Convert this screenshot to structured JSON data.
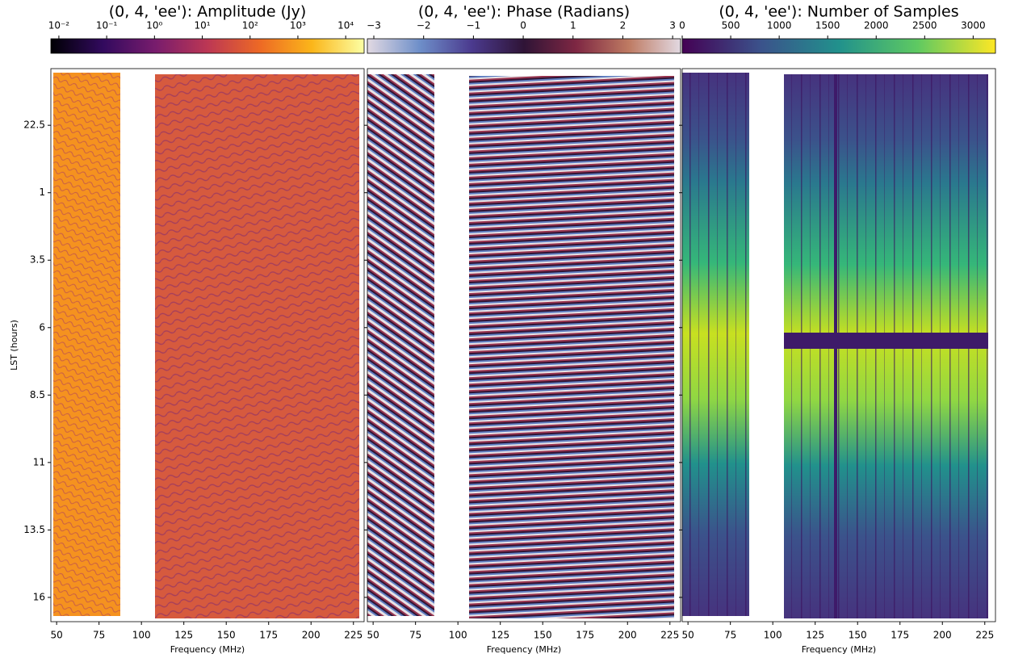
{
  "chart_data": [
    {
      "type": "heatmap",
      "title": "(0, 4, 'ee'): Amplitude (Jy)",
      "colorbar": {
        "scale": "log",
        "lim": [
          0.0068,
          24300
        ],
        "colors": [
          "#000004",
          "#320a5e",
          "#781c6d",
          "#bc3754",
          "#ed6925",
          "#fbb61a",
          "#fcffa4"
        ],
        "ticks": [
          {
            "value": 0.01,
            "label": "10⁻²"
          },
          {
            "value": 0.1,
            "label": "10⁻¹"
          },
          {
            "value": 1,
            "label": "10⁰"
          },
          {
            "value": 10,
            "label": "10¹"
          },
          {
            "value": 100,
            "label": "10²"
          },
          {
            "value": 1000,
            "label": "10³"
          },
          {
            "value": 10000,
            "label": "10⁴"
          }
        ]
      },
      "xlabel": "Frequency (MHz)",
      "xlim": [
        46.6,
        231.3
      ],
      "xticks": [
        50,
        75,
        100,
        125,
        150,
        175,
        200,
        225
      ],
      "ylabel": "LST (hours)",
      "ylim": [
        40.9,
        20.4
      ],
      "yticks": [
        22.5,
        {
          "value": 25,
          "label": "1"
        },
        {
          "value": 27.5,
          "label": "3.5"
        },
        {
          "value": 30,
          "label": "6"
        },
        {
          "value": 32.5,
          "label": "8.5"
        },
        {
          "value": 35,
          "label": "11"
        },
        {
          "value": 37.5,
          "label": "13.5"
        },
        {
          "value": 40,
          "label": "16"
        }
      ]
    },
    {
      "type": "heatmap",
      "title": "(0, 4, 'ee'): Phase (Radians)",
      "colorbar": {
        "scale": "linear",
        "lim": [
          -3.13,
          3.16
        ],
        "colors": [
          "#e2d9e2",
          "#6e8fc9",
          "#4b3a8e",
          "#2f1436",
          "#7e2743",
          "#be7a62",
          "#e2d9e2"
        ],
        "ticks": [
          {
            "value": -3,
            "label": "−3"
          },
          {
            "value": -2,
            "label": "−2"
          },
          {
            "value": -1,
            "label": "−1"
          },
          0,
          1,
          2,
          3
        ]
      },
      "xlabel": "Frequency (MHz)",
      "xlim": [
        46.6,
        231.3
      ],
      "xticks": [
        50,
        75,
        100,
        125,
        150,
        175,
        200,
        225
      ]
    },
    {
      "type": "heatmap",
      "title": "(0, 4, 'ee'): Number of Samples",
      "colorbar": {
        "scale": "linear",
        "lim": [
          0,
          3230
        ],
        "colors": [
          "#440154",
          "#3b528b",
          "#21918c",
          "#5ec962",
          "#fde725"
        ],
        "ticks": [
          0,
          500,
          1000,
          1500,
          2000,
          2500,
          3000
        ]
      },
      "xlabel": "Frequency (MHz)",
      "xlim": [
        46.6,
        231.3
      ],
      "xticks": [
        50,
        75,
        100,
        125,
        150,
        175,
        200,
        225
      ]
    }
  ]
}
